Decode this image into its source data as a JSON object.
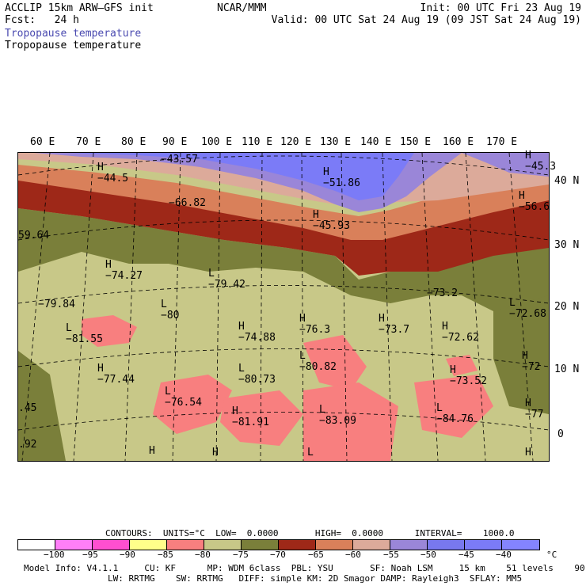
{
  "header": {
    "model": "ACCLIP 15km ARW–GFS init",
    "fcst": "Fcst:   24 h",
    "center": "NCAR/MMM",
    "init": "Init: 00 UTC Fri 23 Aug 19",
    "valid": "Valid: 00 UTC Sat 24 Aug 19 (09 JST Sat 24 Aug 19)",
    "field_title_colored": "Tropopause temperature",
    "field_title": "Tropopause temperature",
    "field_title_color": "#4a4ab0"
  },
  "map": {
    "lon_labels": [
      "60 E",
      "70 E",
      "80 E",
      "90 E",
      "100 E",
      "110 E",
      "120 E",
      "130 E",
      "140 E",
      "150 E",
      "160 E",
      "170 E"
    ],
    "lat_labels": [
      "40 N",
      "30 N",
      "20 N",
      "10 N",
      "0"
    ],
    "hl_markers": [
      {
        "type": "H",
        "value": "−44.5"
      },
      {
        "type": "",
        "value": "−43.57"
      },
      {
        "type": "H",
        "value": "−51.86"
      },
      {
        "type": "H",
        "value": "−45.3"
      },
      {
        "type": "",
        "value": "−66.82"
      },
      {
        "type": "H",
        "value": "−45.93"
      },
      {
        "type": "H",
        "value": "−56.6"
      },
      {
        "type": "",
        "value": "59.64"
      },
      {
        "type": "H",
        "value": "−74.27"
      },
      {
        "type": "L",
        "value": "−79.42"
      },
      {
        "type": "",
        "value": "−79.84"
      },
      {
        "type": "L",
        "value": "−80"
      },
      {
        "type": "L",
        "value": "−81.55"
      },
      {
        "type": "H",
        "value": "−76.3"
      },
      {
        "type": "H",
        "value": "−73.7"
      },
      {
        "type": "",
        "value": "−73.2"
      },
      {
        "type": "L",
        "value": "−72.68"
      },
      {
        "type": "H",
        "value": "−74.88"
      },
      {
        "type": "H",
        "value": "−72.62"
      },
      {
        "type": "L",
        "value": "−80.82"
      },
      {
        "type": "H",
        "value": "−72"
      },
      {
        "type": "H",
        "value": "−77.44"
      },
      {
        "type": "L",
        "value": "−80.73"
      },
      {
        "type": "H",
        "value": "−73.52"
      },
      {
        "type": "L",
        "value": "−76.54"
      },
      {
        "type": "",
        "value": ".45"
      },
      {
        "type": "H",
        "value": "−81.91"
      },
      {
        "type": "L",
        "value": "−83.09"
      },
      {
        "type": "L",
        "value": "−84.76"
      },
      {
        "type": "H",
        "value": "−77"
      },
      {
        "type": "",
        "value": ".92"
      },
      {
        "type": "H",
        "value": ""
      },
      {
        "type": "H",
        "value": ""
      },
      {
        "type": "L",
        "value": ""
      },
      {
        "type": "H",
        "value": ""
      }
    ]
  },
  "contours_line": "CONTOURS:  UNITS=°C  LOW=  0.0000       HIGH=  0.0000      INTERVAL=    1000.0",
  "colorbar": {
    "colors": [
      "#ffffff",
      "#ff7ff8",
      "#ff4fd0",
      "#ffff8a",
      "#f87f7f",
      "#c8c888",
      "#7a7f3a",
      "#9e2818",
      "#d9805a",
      "#dcaa9a",
      "#9a86d8",
      "#7878ee",
      "#7b7bf7",
      "#8484ff"
    ],
    "ticks": [
      "−100",
      "−95",
      "−90",
      "−85",
      "−80",
      "−75",
      "−70",
      "−65",
      "−60",
      "−55",
      "−50",
      "−45",
      "−40"
    ],
    "unit": "°C"
  },
  "footer": {
    "line1": "Model Info: V4.1.1     CU: KF      MP: WDM 6class  PBL: YSU       SF: Noah LSM     15 km    51 levels    90 sec",
    "line2": "                LW: RRTMG    SW: RRTMG   DIFF: simple KM: 2D Smagor DAMP: Rayleigh3  SFLAY: MM5"
  }
}
